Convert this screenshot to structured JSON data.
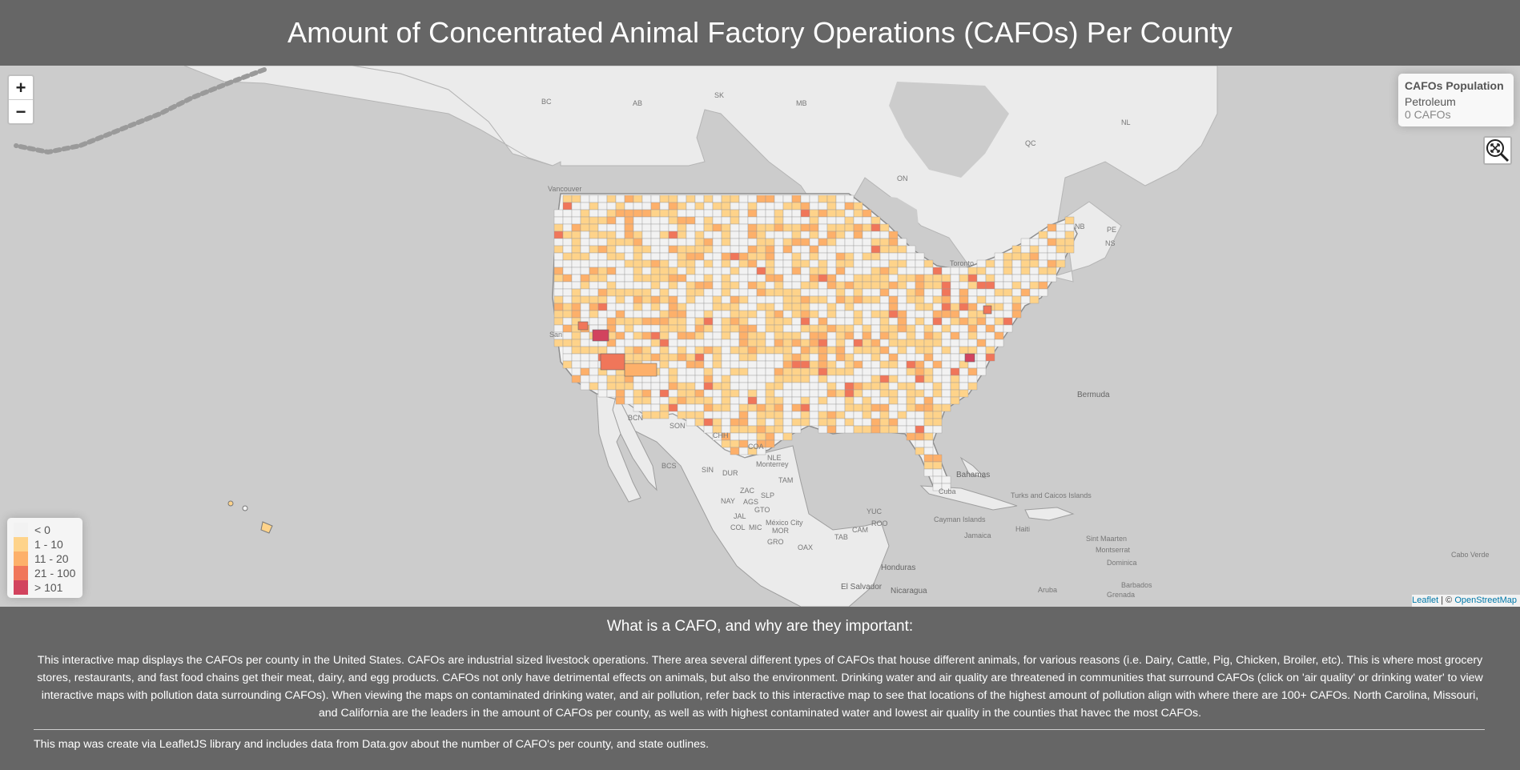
{
  "header": {
    "title": "Amount of Concentrated Animal Factory Operations (CAFOs) Per County"
  },
  "map": {
    "zoom_in": "+",
    "zoom_out": "−",
    "info_panel": {
      "title": "CAFOs Population",
      "name": "Petroleum",
      "value": "0 CAFOs"
    },
    "reset_icon": "zoom-extent-icon",
    "place_labels": [
      "BC",
      "AB",
      "SK",
      "MB",
      "ON",
      "QC",
      "NL",
      "NB",
      "PE",
      "NS",
      "Vancouver",
      "Toronto",
      "Bermuda",
      "BCN",
      "SON",
      "CHH",
      "COA",
      "NLE",
      "Monterrey",
      "TAM",
      "BCS",
      "SIN",
      "DUR",
      "ZAC",
      "SLP",
      "NAY",
      "AGS",
      "GTO",
      "JAL",
      "COL",
      "MIC",
      "México City",
      "MOR",
      "GRO",
      "OAX",
      "TAB",
      "CAM",
      "YUC",
      "ROO",
      "Cuba",
      "Bahamas",
      "Turks and Caicos Islands",
      "Cayman Islands",
      "Jamaica",
      "Haiti",
      "Honduras",
      "Nicaragua",
      "El Salvador",
      "Sint Maarten",
      "Montserrat",
      "Dominica",
      "Barbados",
      "Grenada",
      "Aruba",
      "Cabo Verde",
      "San"
    ],
    "legend": [
      {
        "label": "< 0",
        "color": "#f2f2f2"
      },
      {
        "label": "1 - 10",
        "color": "#fed38a"
      },
      {
        "label": "11 - 20",
        "color": "#fdb06a"
      },
      {
        "label": "21 - 100",
        "color": "#f0765a"
      },
      {
        "label": "> 101",
        "color": "#d2435e"
      }
    ],
    "attribution": {
      "leaflet": "Leaflet",
      "sep": " | © ",
      "osm": "OpenStreetMap"
    }
  },
  "footer": {
    "heading": "What is a CAFO, and why are they important:",
    "description": "This interactive map displays the CAFOs per county in the United States. CAFOs are industrial sized livestock operations. There area several different types of CAFOs that house different animals, for various reasons (i.e. Dairy, Cattle, Pig, Chicken, Broiler, etc). This is where most grocery stores, restaurants, and fast food chains get their meat, dairy, and egg products. CAFOs not only have detrimental effects on animals, but also the environment. Drinking water and air quality are threatened in communities that surround CAFOs (click on 'air quality' or drinking water' to view interactive maps with pollution data surrounding CAFOs). When viewing the maps on contaminated drinking water, and air pollution, refer back to this interactive map to see that locations of the highest amount of pollution align with where there are 100+ CAFOs. North Carolina, Missouri, and California are the leaders in the amount of CAFOs per county, as well as with highest contaminated water and lowest air quality in the counties that havec the most CAFOs.",
    "source": "This map was create via LeafletJS library and includes data from Data.gov about the number of CAFO's per county, and state outlines."
  }
}
